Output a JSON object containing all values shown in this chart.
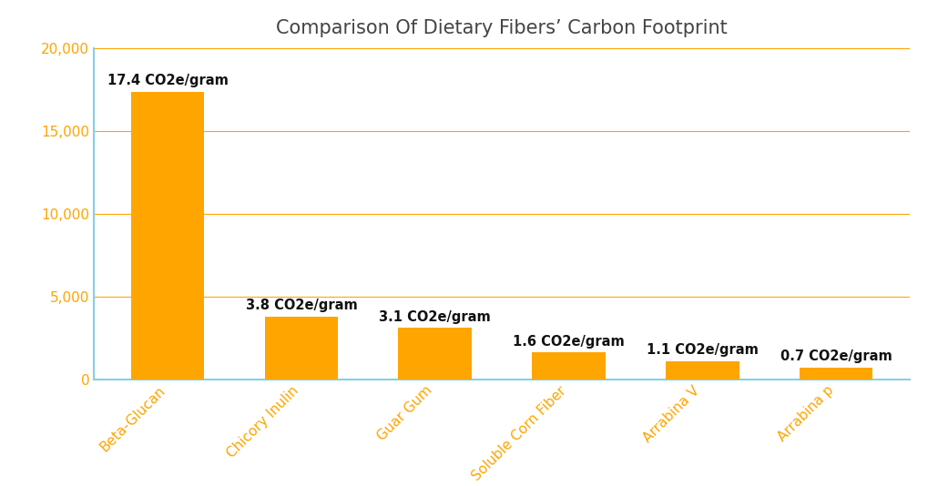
{
  "title": "Comparison Of Dietary Fibers’ Carbon Footprint",
  "categories": [
    "Beta-Glucan",
    "Chicory Inulin",
    "Guar Gum",
    "Soluble Corn Fiber",
    "Arrabina V",
    "Arrabina p"
  ],
  "values": [
    17400,
    3800,
    3100,
    1600,
    1100,
    700
  ],
  "labels": [
    "17.4 CO2e/gram",
    "3.8 CO2e/gram",
    "3.1 CO2e/gram",
    "1.6 CO2e/gram",
    "1.1 CO2e/gram",
    "0.7 CO2e/gram"
  ],
  "bar_color": "#FFA500",
  "label_color": "#111111",
  "tick_label_color": "#FFA500",
  "ytick_label_color": "#FFA500",
  "title_color": "#444444",
  "grid_color": "#FFA500",
  "axis_line_color": "#87CEEB",
  "background_color": "#ffffff",
  "ylim": [
    0,
    20000
  ],
  "yticks": [
    0,
    5000,
    10000,
    15000,
    20000
  ],
  "ytick_labels": [
    "0",
    "5,000",
    "10,000",
    "15,000",
    "20,000"
  ],
  "title_fontsize": 15,
  "label_fontsize": 10.5,
  "tick_fontsize": 11,
  "bar_width": 0.55
}
